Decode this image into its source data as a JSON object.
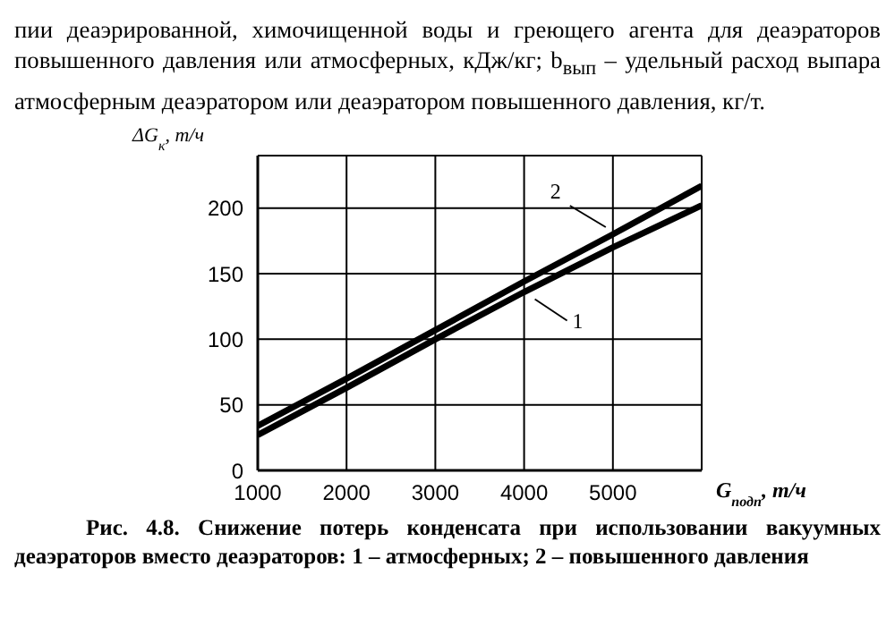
{
  "chart_data": {
    "type": "line",
    "xlabel": "G$_{подп}$, т/ч",
    "ylabel": "ΔG$_{к}$, т/ч",
    "x": [
      1000,
      2000,
      3000,
      4000,
      5000,
      6000
    ],
    "series": [
      {
        "name": "1",
        "color": "#000000",
        "values": [
          27,
          63,
          100,
          136,
          170,
          202
        ]
      },
      {
        "name": "2",
        "color": "#000000",
        "values": [
          34,
          70,
          107,
          144,
          180,
          217
        ]
      }
    ],
    "xlim": [
      1000,
      6000
    ],
    "xticks": [
      1000,
      2000,
      3000,
      4000,
      5000
    ],
    "ylim": [
      0,
      240
    ],
    "yticks": [
      0,
      50,
      100,
      150,
      200
    ],
    "grid": true,
    "marker": "none",
    "line_style": "solid",
    "annotations": [
      "пии деаэрированной, химочищенной воды и греющего агента для деаэраторов повышенного давления или атмосферных, кДж/кг; b$_{вып}$ – удельный расход выпара атмосферным деаэратором или деаэратором повышенного давления, кг/т.",
      "Рис. 4.8. Снижение потерь конденсата при использовании вакуумных деаэраторов вместо деаэраторов: 1 – атмосферных; 2 – повышенного давления"
    ]
  }
}
